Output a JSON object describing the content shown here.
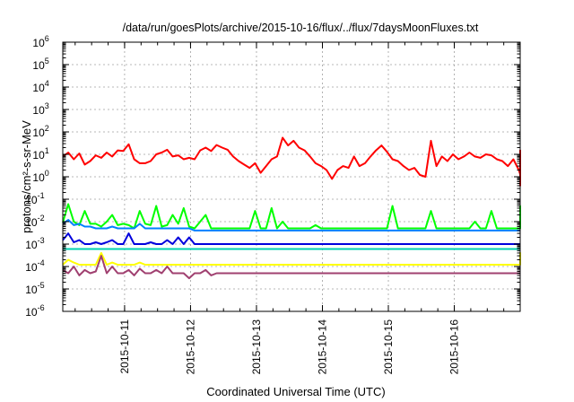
{
  "chart_data": {
    "type": "line",
    "title": "/data/run/goesPlots/archive/2015-10-16/flux/../flux/7daysMoonFluxes.txt",
    "xlabel": "Coordinated Universal Time (UTC)",
    "ylabel": "protons/cm²-s-sr-MeV",
    "yscale": "log",
    "ylim": [
      1e-06,
      1000000.0
    ],
    "xlim": [
      "2015-10-10T01:30",
      "2015-10-16T23:59"
    ],
    "grid": true,
    "y_ticks": [
      {
        "base": "10",
        "exp": "-6"
      },
      {
        "base": "10",
        "exp": "-5"
      },
      {
        "base": "10",
        "exp": "-4"
      },
      {
        "base": "10",
        "exp": "-3"
      },
      {
        "base": "10",
        "exp": "-2"
      },
      {
        "base": "10",
        "exp": "-1"
      },
      {
        "base": "10",
        "exp": "0"
      },
      {
        "base": "10",
        "exp": "1"
      },
      {
        "base": "10",
        "exp": "2"
      },
      {
        "base": "10",
        "exp": "3"
      },
      {
        "base": "10",
        "exp": "4"
      },
      {
        "base": "10",
        "exp": "5"
      },
      {
        "base": "10",
        "exp": "6"
      }
    ],
    "x_ticks": [
      "2015-10-11",
      "2015-10-12",
      "2015-10-13",
      "2015-10-14",
      "2015-10-15",
      "2015-10-16"
    ],
    "x_start": "2015-10-10T01:30",
    "x_step_hours": 2,
    "series": [
      {
        "color": "#ff0000",
        "values": [
          8,
          12,
          6,
          11,
          3.5,
          5,
          9,
          7,
          12,
          8,
          15,
          14,
          28,
          6,
          4,
          4,
          5,
          10,
          12,
          16,
          8,
          9,
          6,
          7,
          6,
          15,
          20,
          14,
          26,
          20,
          16,
          8,
          5,
          3.5,
          2.5,
          4,
          1.5,
          3,
          6,
          8,
          55,
          25,
          40,
          20,
          15,
          8,
          4,
          3,
          2,
          0.8,
          2,
          3,
          2.5,
          8,
          3,
          4,
          8,
          15,
          25,
          13,
          6,
          5,
          3,
          2,
          2.5,
          1.2,
          1,
          40,
          3,
          8,
          5,
          10,
          6,
          8,
          12,
          8,
          7,
          10,
          9,
          6,
          5,
          3,
          6,
          2,
          1.3,
          2,
          2.5,
          2,
          4,
          7,
          9,
          12,
          9,
          6,
          15,
          12,
          5,
          2,
          1.8,
          0.5,
          0.4,
          0.7,
          0.5,
          0.8,
          1.5,
          3,
          4,
          10,
          7,
          8,
          5,
          6
        ]
      },
      {
        "color": "#00ff00",
        "values": [
          0.009,
          0.06,
          0.01,
          0.007,
          0.03,
          0.008,
          0.008,
          0.006,
          0.01,
          0.02,
          0.007,
          0.008,
          0.007,
          0.005,
          0.03,
          0.008,
          0.007,
          0.05,
          0.006,
          0.007,
          0.02,
          0.008,
          0.04,
          0.006,
          0.005,
          0.01,
          0.02,
          0.005,
          0.005,
          0.005,
          0.005,
          0.005,
          0.005,
          0.005,
          0.005,
          0.03,
          0.005,
          0.005,
          0.04,
          0.005,
          0.01,
          0.005,
          0.005,
          0.005,
          0.005,
          0.005,
          0.007,
          0.005,
          0.005,
          0.005,
          0.005,
          0.005,
          0.005,
          0.005,
          0.005,
          0.005,
          0.005,
          0.005,
          0.005,
          0.005,
          0.05,
          0.005,
          0.005,
          0.005,
          0.005,
          0.005,
          0.005,
          0.03,
          0.005,
          0.005,
          0.005,
          0.005,
          0.005,
          0.005,
          0.005,
          0.01,
          0.005,
          0.005,
          0.03,
          0.005,
          0.005,
          0.005,
          0.005,
          0.005,
          0.005,
          0.005,
          0.005,
          0.005,
          0.005,
          0.005,
          0.005,
          0.005,
          0.01,
          0.005,
          0.005,
          0.005,
          0.005,
          0.005,
          0.005,
          0.05,
          0.005,
          0.008,
          0.005,
          0.005,
          0.005,
          0.005,
          0.005,
          0.005,
          0.005,
          0.005,
          0.05,
          0.005,
          0.01,
          0.006
        ]
      },
      {
        "color": "#0080ff",
        "values": [
          0.008,
          0.012,
          0.007,
          0.008,
          0.006,
          0.006,
          0.005,
          0.005,
          0.005,
          0.006,
          0.005,
          0.005,
          0.005,
          0.005,
          0.008,
          0.005,
          0.005,
          0.005,
          0.005,
          0.005,
          0.005,
          0.005,
          0.005,
          0.005,
          0.004,
          0.004,
          0.004,
          0.004,
          0.004,
          0.004,
          0.004,
          0.004,
          0.004,
          0.004,
          0.004,
          0.004,
          0.004,
          0.004,
          0.004,
          0.004,
          0.004,
          0.004,
          0.004,
          0.004,
          0.004,
          0.004,
          0.004,
          0.004,
          0.004,
          0.004,
          0.004,
          0.004,
          0.004,
          0.004,
          0.004,
          0.004,
          0.004,
          0.004,
          0.004,
          0.004,
          0.004,
          0.004,
          0.004,
          0.004,
          0.004,
          0.004,
          0.004,
          0.004,
          0.004,
          0.004,
          0.004,
          0.004,
          0.004,
          0.004,
          0.004,
          0.004,
          0.004,
          0.004,
          0.004,
          0.004,
          0.004,
          0.004,
          0.004,
          0.004,
          0.004,
          0.004,
          0.004,
          0.004,
          0.004,
          0.004,
          0.004,
          0.004,
          0.004,
          0.004,
          0.004,
          0.004,
          0.004,
          0.004,
          0.004,
          0.004,
          0.004,
          0.004,
          0.004,
          0.004,
          0.004,
          0.004,
          0.004,
          0.004,
          0.004,
          0.004,
          0.004,
          0.004,
          0.004,
          0.004
        ]
      },
      {
        "color": "#0000dd",
        "values": [
          0.0015,
          0.003,
          0.0012,
          0.0015,
          0.001,
          0.001,
          0.0012,
          0.001,
          0.0012,
          0.0015,
          0.001,
          0.001,
          0.003,
          0.001,
          0.001,
          0.001,
          0.0012,
          0.001,
          0.001,
          0.0015,
          0.001,
          0.002,
          0.001,
          0.002,
          0.001,
          0.001,
          0.001,
          0.001,
          0.001,
          0.001,
          0.001,
          0.001,
          0.001,
          0.001,
          0.001,
          0.001,
          0.001,
          0.001,
          0.001,
          0.001,
          0.001,
          0.001,
          0.001,
          0.001,
          0.001,
          0.001,
          0.001,
          0.001,
          0.001,
          0.001,
          0.001,
          0.001,
          0.001,
          0.001,
          0.001,
          0.001,
          0.001,
          0.001,
          0.001,
          0.001,
          0.001,
          0.001,
          0.001,
          0.001,
          0.001,
          0.001,
          0.001,
          0.001,
          0.001,
          0.001,
          0.001,
          0.001,
          0.001,
          0.001,
          0.001,
          0.001,
          0.001,
          0.001,
          0.001,
          0.001,
          0.001,
          0.001,
          0.001,
          0.001,
          0.001,
          0.001,
          0.001,
          0.001,
          0.001,
          0.001,
          0.001,
          0.001,
          0.001,
          0.001,
          0.001,
          0.001,
          0.001,
          0.001,
          0.001,
          0.001,
          0.001,
          0.001,
          0.001,
          0.001,
          0.001,
          0.001,
          0.001,
          0.001,
          0.001,
          0.001,
          0.001,
          0.001,
          0.001,
          0.001
        ]
      },
      {
        "color": "#00d0b0",
        "values": [
          0.0006,
          0.0006,
          0.0006,
          0.0006,
          0.0006,
          0.0006,
          0.0006,
          0.0006,
          0.0006,
          0.0006,
          0.0006,
          0.0006,
          0.0006,
          0.0006,
          0.0006,
          0.0006,
          0.0006,
          0.0006,
          0.0006,
          0.0006,
          0.0006,
          0.0006,
          0.0006,
          0.0006,
          0.0006,
          0.0006,
          0.0006,
          0.0006,
          0.0006,
          0.0006,
          0.0006,
          0.0006,
          0.0006,
          0.0006,
          0.0006,
          0.0006,
          0.0006,
          0.0006,
          0.0006,
          0.0006,
          0.0006,
          0.0006,
          0.0006,
          0.0006,
          0.0006,
          0.0006,
          0.0006,
          0.0006,
          0.0006,
          0.0006,
          0.0006,
          0.0006,
          0.0006,
          0.0006,
          0.0006,
          0.0006,
          0.0006,
          0.0006,
          0.0006,
          0.0006,
          0.0006,
          0.0006,
          0.0006,
          0.0006,
          0.0006,
          0.0006,
          0.0006,
          0.0006,
          0.0006,
          0.0006,
          0.0006,
          0.0006,
          0.0006,
          0.0006,
          0.0006,
          0.0006,
          0.0006,
          0.0006,
          0.0006,
          0.0006,
          0.0006,
          0.0006,
          0.0006,
          0.0006,
          0.0006,
          0.0006,
          0.0006,
          0.0006,
          0.0006,
          0.0006,
          0.0006,
          0.0006,
          0.0006,
          0.0006,
          0.0006,
          0.0006,
          0.0006,
          0.0006,
          0.0006,
          0.0006,
          0.0006,
          0.0006,
          0.0006,
          0.0006,
          0.0006,
          0.0006,
          0.0006,
          0.0006,
          0.0006,
          0.0006,
          0.0006,
          0.0006,
          0.0006,
          0.0006
        ]
      },
      {
        "color": "#ffff00",
        "values": [
          0.00012,
          0.0002,
          0.00015,
          0.00012,
          0.00012,
          0.00012,
          0.00012,
          0.0004,
          0.00012,
          0.00015,
          0.00012,
          0.00012,
          0.00012,
          0.00012,
          0.00015,
          0.00012,
          0.00012,
          0.00012,
          0.00012,
          0.00012,
          0.00012,
          0.00012,
          0.00012,
          0.00012,
          0.00012,
          0.00012,
          0.00012,
          0.00012,
          0.00012,
          0.00012,
          0.00012,
          0.00012,
          0.00012,
          0.00012,
          0.00012,
          0.00012,
          0.00012,
          0.00012,
          0.00012,
          0.00012,
          0.00012,
          0.00012,
          0.00012,
          0.00012,
          0.00012,
          0.00012,
          0.00012,
          0.00012,
          0.00012,
          0.00012,
          0.00012,
          0.00012,
          0.00012,
          0.00012,
          0.00012,
          0.00012,
          0.00012,
          0.00012,
          0.00012,
          0.00012,
          0.00012,
          0.00012,
          0.00012,
          0.00012,
          0.00012,
          0.00012,
          0.00012,
          0.00012,
          0.00012,
          0.00012,
          0.00012,
          0.00012,
          0.00012,
          0.00012,
          0.00012,
          0.00012,
          0.00012,
          0.00012,
          0.00012,
          0.00012,
          0.00012,
          0.00012,
          0.00012,
          0.00012,
          0.00012,
          0.00012,
          0.00012,
          0.00012,
          0.00012,
          0.00012,
          0.00012,
          0.00012,
          0.00012,
          0.00012,
          0.00012,
          0.00012,
          0.00012,
          0.00012,
          0.00012,
          0.00012,
          0.00012,
          0.00012,
          0.00012,
          0.00012,
          0.00012,
          0.00012,
          0.00012,
          0.00012,
          0.00012,
          0.0004,
          0.00012,
          0.00012,
          0.00012,
          0.00012
        ]
      },
      {
        "color": "#a04070",
        "values": [
          7e-05,
          5e-05,
          0.0001,
          4e-05,
          7e-05,
          5e-05,
          6e-05,
          0.0003,
          5e-05,
          0.0001,
          5e-05,
          5e-05,
          7e-05,
          4e-05,
          8e-05,
          5e-05,
          5e-05,
          7e-05,
          5e-05,
          0.0001,
          5e-05,
          5e-05,
          5e-05,
          3e-05,
          5e-05,
          5e-05,
          7e-05,
          4e-05,
          5e-05,
          5e-05,
          5e-05,
          5e-05,
          5e-05,
          5e-05,
          5e-05,
          5e-05,
          5e-05,
          5e-05,
          5e-05,
          5e-05,
          5e-05,
          5e-05,
          5e-05,
          5e-05,
          5e-05,
          5e-05,
          5e-05,
          5e-05,
          5e-05,
          5e-05,
          5e-05,
          5e-05,
          5e-05,
          5e-05,
          5e-05,
          5e-05,
          5e-05,
          5e-05,
          5e-05,
          5e-05,
          5e-05,
          5e-05,
          5e-05,
          5e-05,
          5e-05,
          5e-05,
          5e-05,
          5e-05,
          5e-05,
          5e-05,
          5e-05,
          5e-05,
          5e-05,
          5e-05,
          5e-05,
          5e-05,
          5e-05,
          5e-05,
          5e-05,
          5e-05,
          5e-05,
          5e-05,
          5e-05,
          5e-05,
          5e-05,
          5e-05,
          5e-05,
          5e-05,
          5e-05,
          5e-05,
          5e-05,
          5e-05,
          5e-05,
          5e-05,
          5e-05,
          5e-05,
          5e-05,
          5e-05,
          5e-05,
          5e-05,
          5e-05,
          5e-05,
          5e-05,
          5e-05,
          5e-05,
          5e-05,
          5e-05,
          5e-05,
          5e-05,
          5e-05,
          5e-05,
          5e-05,
          5e-05
        ]
      }
    ]
  }
}
